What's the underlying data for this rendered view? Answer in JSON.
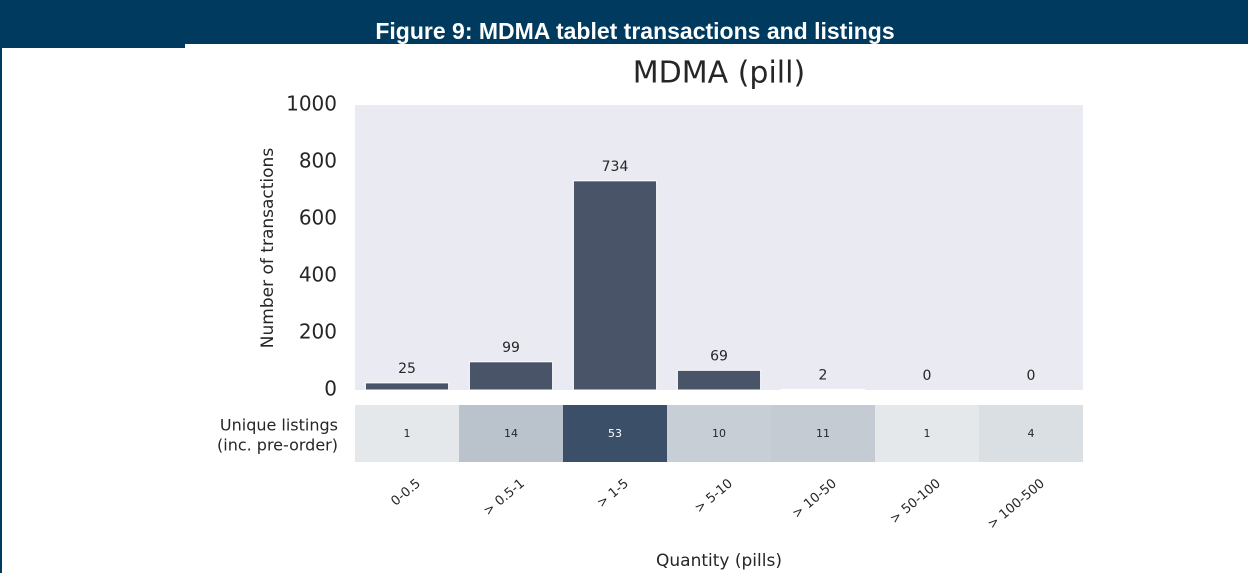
{
  "figure_title": "Figure 9: MDMA tablet transactions and listings",
  "chart_data": {
    "type": "bar",
    "title": "MDMA (pill)",
    "categories": [
      "0-0.5",
      "> 0.5-1",
      "> 1-5",
      "> 5-10",
      "> 10-50",
      "> 50-100",
      "> 100-500"
    ],
    "values": [
      25,
      99,
      734,
      69,
      2,
      0,
      0
    ],
    "color": "#4a5468",
    "ylim": [
      0,
      1000
    ],
    "yticks": [
      0,
      200,
      400,
      600,
      800,
      1000
    ],
    "ylabel": "Number of transactions",
    "xlabel": "Quantity (pills)",
    "listings": {
      "label_lines": [
        "Unique listings",
        "(inc. pre-order)"
      ],
      "values": [
        1,
        14,
        53,
        10,
        11,
        1,
        4
      ],
      "colormap": [
        "#e4e8eb",
        "#3c4f69"
      ]
    }
  }
}
